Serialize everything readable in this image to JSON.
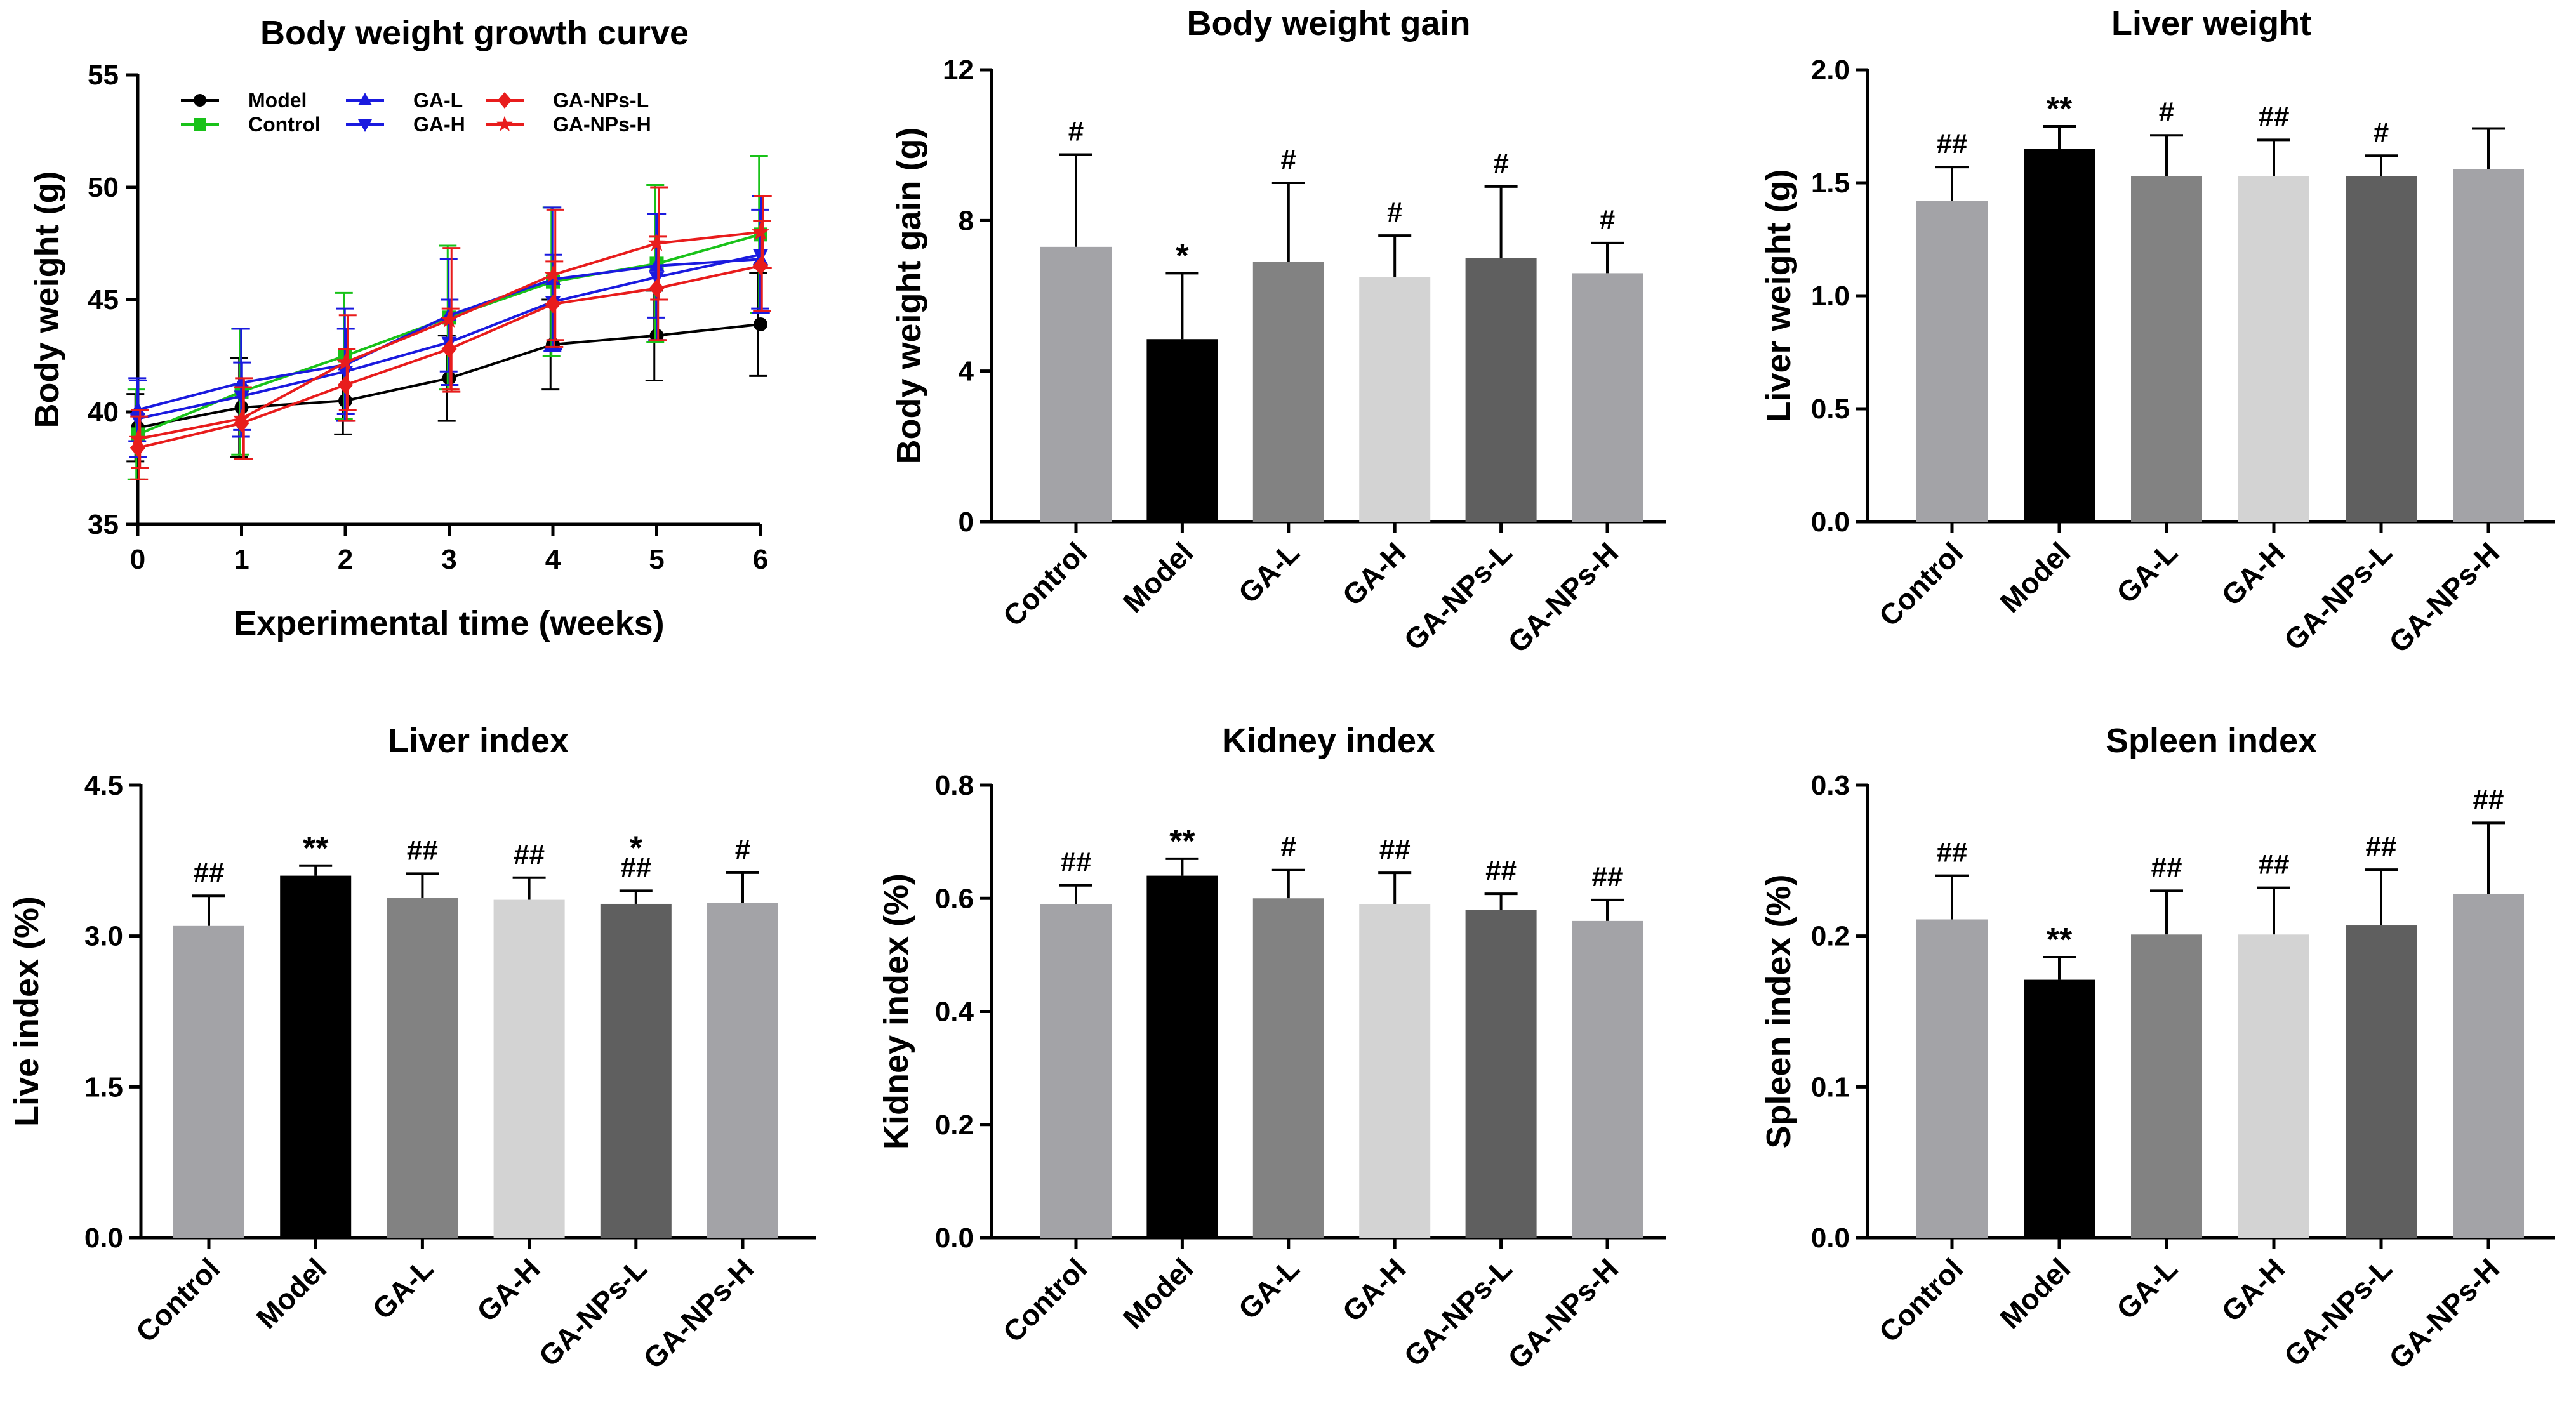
{
  "chart_data": [
    {
      "type": "line",
      "title": "Body weight growth curve",
      "xlabel": "Experimental time (weeks)",
      "ylabel": "Body weight (g)",
      "x": [
        0,
        1,
        2,
        3,
        4,
        5,
        6
      ],
      "xlim": [
        0,
        6
      ],
      "ylim": [
        35,
        55
      ],
      "yticks": [
        "35",
        "40",
        "45",
        "50",
        "55"
      ],
      "xticks": [
        "0",
        "1",
        "2",
        "3",
        "4",
        "5",
        "6"
      ],
      "legend_position": "top-left",
      "series": [
        {
          "name": "Model",
          "color": "#000000",
          "marker": "circle",
          "values": [
            39.3,
            40.2,
            40.5,
            41.5,
            43.0,
            43.4,
            43.9
          ],
          "errors": [
            1.5,
            2.2,
            1.5,
            1.9,
            2.0,
            2.0,
            2.3
          ]
        },
        {
          "name": "Control",
          "color": "#19c219",
          "marker": "square",
          "values": [
            39.0,
            40.9,
            42.5,
            44.2,
            45.8,
            46.6,
            47.9
          ],
          "errors": [
            2.0,
            2.8,
            2.8,
            3.2,
            3.3,
            3.5,
            3.5
          ]
        },
        {
          "name": "GA-L",
          "color": "#1a1adf",
          "marker": "triangle-up",
          "values": [
            40.1,
            41.3,
            42.1,
            44.3,
            45.9,
            46.5,
            46.8
          ],
          "errors": [
            1.4,
            2.4,
            2.5,
            2.5,
            3.2,
            2.3,
            2.2
          ]
        },
        {
          "name": "GA-H",
          "color": "#1a1adf",
          "marker": "triangle-down",
          "values": [
            39.7,
            40.7,
            41.8,
            43.1,
            44.9,
            46.0,
            47.0
          ],
          "errors": [
            1.7,
            1.5,
            1.9,
            1.9,
            2.1,
            2.8,
            2.6
          ]
        },
        {
          "name": "GA-NPs-L",
          "color": "#e81c1c",
          "marker": "diamond",
          "values": [
            38.4,
            39.5,
            41.2,
            42.8,
            44.8,
            45.5,
            46.5
          ],
          "errors": [
            1.4,
            1.6,
            1.6,
            1.8,
            1.9,
            2.3,
            2.0
          ]
        },
        {
          "name": "GA-NPs-H",
          "color": "#e81c1c",
          "marker": "star",
          "values": [
            38.8,
            39.7,
            42.2,
            44.1,
            46.1,
            47.5,
            48.0
          ],
          "errors": [
            1.3,
            1.8,
            2.1,
            3.2,
            2.9,
            2.5,
            1.6
          ]
        }
      ]
    },
    {
      "type": "bar",
      "title": "Body weight gain",
      "ylabel": "Body weight gain (g)",
      "categories": [
        "Control",
        "Model",
        "GA-L",
        "GA-H",
        "GA-NPs-L",
        "GA-NPs-H"
      ],
      "values": [
        7.3,
        4.85,
        6.9,
        6.5,
        7.0,
        6.6
      ],
      "errors": [
        2.45,
        1.75,
        2.1,
        1.1,
        1.9,
        0.8
      ],
      "significance": [
        "#",
        "*",
        "#",
        "#",
        "#",
        "#"
      ],
      "bar_colors": [
        "#a3a3a7",
        "#000000",
        "#828282",
        "#d3d3d3",
        "#5f5f5f",
        "#a3a3a7"
      ],
      "ylim": [
        0,
        12
      ],
      "yticks": [
        "0",
        "4",
        "8",
        "12"
      ]
    },
    {
      "type": "bar",
      "title": "Liver weight",
      "ylabel": "Liver weight (g)",
      "categories": [
        "Control",
        "Model",
        "GA-L",
        "GA-H",
        "GA-NPs-L",
        "GA-NPs-H"
      ],
      "values": [
        1.42,
        1.65,
        1.53,
        1.53,
        1.53,
        1.56
      ],
      "errors": [
        0.15,
        0.1,
        0.18,
        0.16,
        0.09,
        0.18
      ],
      "significance": [
        "##",
        "**",
        "#",
        "##",
        "#",
        ""
      ],
      "bar_colors": [
        "#a3a3a7",
        "#000000",
        "#828282",
        "#d3d3d3",
        "#5f5f5f",
        "#a3a3a7"
      ],
      "ylim": [
        0,
        2.0
      ],
      "yticks": [
        "0.0",
        "0.5",
        "1.0",
        "1.5",
        "2.0"
      ]
    },
    {
      "type": "bar",
      "title": "Liver index",
      "ylabel": "Live index (%)",
      "categories": [
        "Control",
        "Model",
        "GA-L",
        "GA-H",
        "GA-NPs-L",
        "GA-NPs-H"
      ],
      "values": [
        3.1,
        3.6,
        3.38,
        3.36,
        3.32,
        3.33
      ],
      "errors": [
        0.3,
        0.1,
        0.24,
        0.22,
        0.13,
        0.3
      ],
      "significance": [
        "##",
        "**",
        "##",
        "##",
        "*\n##",
        "#"
      ],
      "bar_colors": [
        "#a3a3a7",
        "#000000",
        "#828282",
        "#d3d3d3",
        "#5f5f5f",
        "#a3a3a7"
      ],
      "ylim": [
        0,
        4.5
      ],
      "yticks": [
        "0.0",
        "1.5",
        "3.0",
        "4.5"
      ]
    },
    {
      "type": "bar",
      "title": "Kidney index",
      "ylabel": "Kidney index (%)",
      "categories": [
        "Control",
        "Model",
        "GA-L",
        "GA-H",
        "GA-NPs-L",
        "GA-NPs-H"
      ],
      "values": [
        0.59,
        0.64,
        0.6,
        0.59,
        0.58,
        0.56
      ],
      "errors": [
        0.033,
        0.03,
        0.05,
        0.055,
        0.028,
        0.037
      ],
      "significance": [
        "##",
        "**",
        "#",
        "##",
        "##",
        "##"
      ],
      "bar_colors": [
        "#a3a3a7",
        "#000000",
        "#828282",
        "#d3d3d3",
        "#5f5f5f",
        "#a3a3a7"
      ],
      "ylim": [
        0,
        0.8
      ],
      "yticks": [
        "0.0",
        "0.2",
        "0.4",
        "0.6",
        "0.8"
      ]
    },
    {
      "type": "bar",
      "title": "Spleen index",
      "ylabel": "Spleen index (%)",
      "categories": [
        "Control",
        "Model",
        "GA-L",
        "GA-H",
        "GA-NPs-L",
        "GA-NPs-H"
      ],
      "values": [
        0.211,
        0.171,
        0.201,
        0.201,
        0.207,
        0.228
      ],
      "errors": [
        0.029,
        0.015,
        0.029,
        0.031,
        0.037,
        0.047
      ],
      "significance": [
        "##",
        "**",
        "##",
        "##",
        "##",
        "##"
      ],
      "bar_colors": [
        "#a3a3a7",
        "#000000",
        "#828282",
        "#d3d3d3",
        "#5f5f5f",
        "#a3a3a7"
      ],
      "ylim": [
        0,
        0.3
      ],
      "yticks": [
        "0.0",
        "0.1",
        "0.2",
        "0.3"
      ]
    }
  ]
}
